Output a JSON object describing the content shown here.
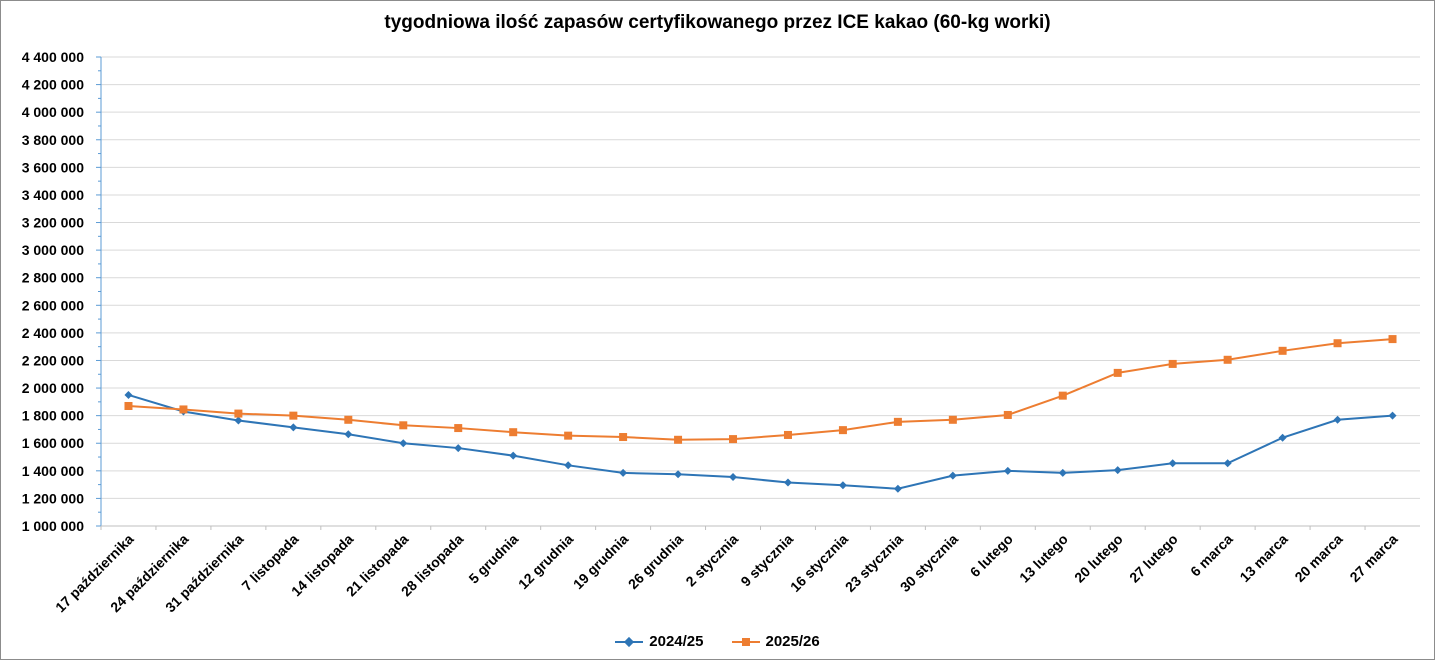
{
  "chart_data": {
    "type": "line",
    "title": "tygodniowa ilość zapasów certyfikowanego przez ICE kakao (60-kg worki)",
    "xlabel": "",
    "ylabel": "",
    "ylim": [
      1000000,
      4400000
    ],
    "ytick_step": 200000,
    "y_tick_labels": [
      "1 000 000",
      "1 200 000",
      "1 400 000",
      "1 600 000",
      "1 800 000",
      "2 000 000",
      "2 200 000",
      "2 400 000",
      "2 600 000",
      "2 800 000",
      "3 000 000",
      "3 200 000",
      "3 400 000",
      "3 600 000",
      "3 800 000",
      "4 000 000",
      "4 200 000",
      "4 400 000"
    ],
    "grid": true,
    "legend_position": "bottom",
    "categories": [
      "17 października",
      "24 października",
      "31 października",
      "7 listopada",
      "14 listopada",
      "21 listopada",
      "28 listopada",
      "5 grudnia",
      "12 grudnia",
      "19 grudnia",
      "26 grudnia",
      "2 stycznia",
      "9 stycznia",
      "16 stycznia",
      "23 stycznia",
      "30 stycznia",
      "6 lutego",
      "13 lutego",
      "20 lutego",
      "27 lutego",
      "6 marca",
      "13 marca",
      "20 marca",
      "27 marca"
    ],
    "series": [
      {
        "name": "2024/25",
        "color": "#2e75b6",
        "marker": "diamond",
        "values": [
          1950000,
          1830000,
          1765000,
          1715000,
          1665000,
          1600000,
          1565000,
          1510000,
          1440000,
          1385000,
          1375000,
          1355000,
          1315000,
          1295000,
          1270000,
          1365000,
          1400000,
          1385000,
          1405000,
          1455000,
          1455000,
          1640000,
          1770000,
          1800000
        ]
      },
      {
        "name": "2025/26",
        "color": "#ed7d31",
        "marker": "square",
        "values": [
          1870000,
          1845000,
          1815000,
          1800000,
          1770000,
          1730000,
          1710000,
          1680000,
          1655000,
          1645000,
          1625000,
          1630000,
          1660000,
          1695000,
          1755000,
          1770000,
          1805000,
          1945000,
          2110000,
          2175000,
          2205000,
          2270000,
          2325000,
          2355000
        ]
      }
    ]
  }
}
